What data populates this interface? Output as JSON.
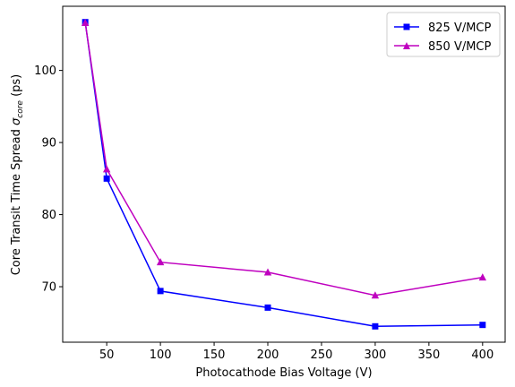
{
  "chart_data": {
    "type": "line",
    "xlabel": "Photocathode Bias Voltage (V)",
    "ylabel_main": "Core Transit Time Spread ",
    "ylabel_sigma": "σ",
    "ylabel_sub": "core",
    "ylabel_unit": " (ps)",
    "xlim": [
      9,
      421
    ],
    "ylim": [
      62.3,
      108.9
    ],
    "xticks": [
      50,
      100,
      150,
      200,
      250,
      300,
      350,
      400
    ],
    "yticks": [
      70,
      80,
      90,
      100
    ],
    "grid": false,
    "legend_position": "top-right",
    "series": [
      {
        "name": "825 V/MCP",
        "color": "#0000ff",
        "marker": "square",
        "x": [
          30,
          50,
          100,
          200,
          300,
          400
        ],
        "y": [
          106.7,
          85.0,
          69.4,
          67.1,
          64.5,
          64.7
        ]
      },
      {
        "name": "850 V/MCP",
        "color": "#bf00bf",
        "marker": "triangle",
        "x": [
          30,
          50,
          100,
          200,
          300,
          400
        ],
        "y": [
          106.6,
          86.3,
          73.4,
          72.0,
          68.8,
          71.3
        ]
      }
    ]
  }
}
